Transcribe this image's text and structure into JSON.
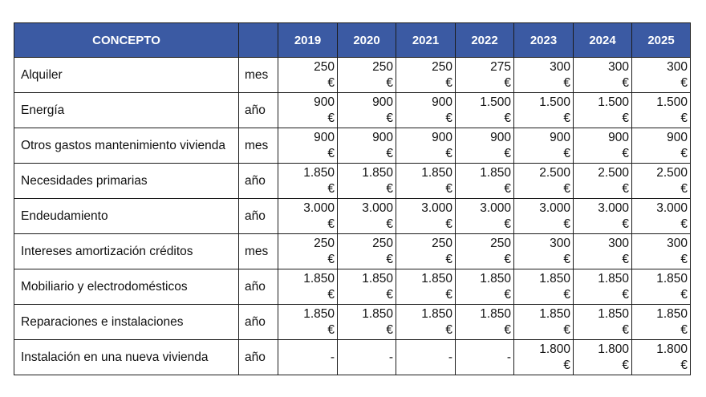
{
  "header": {
    "concepto": "CONCEPTO",
    "unit": "",
    "years": [
      "2019",
      "2020",
      "2021",
      "2022",
      "2023",
      "2024",
      "2025"
    ]
  },
  "currency": "€",
  "rows": [
    {
      "concepto": "Alquiler",
      "unit": "mes",
      "values": [
        "250",
        "250",
        "250",
        "275",
        "300",
        "300",
        "300"
      ]
    },
    {
      "concepto": "Energía",
      "unit": "año",
      "values": [
        "900",
        "900",
        "900",
        "1.500",
        "1.500",
        "1.500",
        "1.500"
      ]
    },
    {
      "concepto": "Otros gastos mantenimiento vivienda",
      "unit": "mes",
      "values": [
        "900",
        "900",
        "900",
        "900",
        "900",
        "900",
        "900"
      ]
    },
    {
      "concepto": "Necesidades primarias",
      "unit": "año",
      "values": [
        "1.850",
        "1.850",
        "1.850",
        "1.850",
        "2.500",
        "2.500",
        "2.500"
      ]
    },
    {
      "concepto": "Endeudamiento",
      "unit": "año",
      "values": [
        "3.000",
        "3.000",
        "3.000",
        "3.000",
        "3.000",
        "3.000",
        "3.000"
      ]
    },
    {
      "concepto": "Intereses amortización créditos",
      "unit": "mes",
      "values": [
        "250",
        "250",
        "250",
        "250",
        "300",
        "300",
        "300"
      ]
    },
    {
      "concepto": "Mobiliario y electrodomésticos",
      "unit": "año",
      "values": [
        "1.850",
        "1.850",
        "1.850",
        "1.850",
        "1.850",
        "1.850",
        "1.850"
      ]
    },
    {
      "concepto": "Reparaciones e instalaciones",
      "unit": "año",
      "values": [
        "1.850",
        "1.850",
        "1.850",
        "1.850",
        "1.850",
        "1.850",
        "1.850"
      ]
    },
    {
      "concepto": "Instalación en una nueva vivienda",
      "unit": "año",
      "values": [
        "-",
        "-",
        "-",
        "-",
        "1.800",
        "1.800",
        "1.800"
      ]
    }
  ],
  "colors": {
    "header_bg": "#3b5aa3",
    "header_text": "#ffffff",
    "border": "#1c1c1c"
  }
}
